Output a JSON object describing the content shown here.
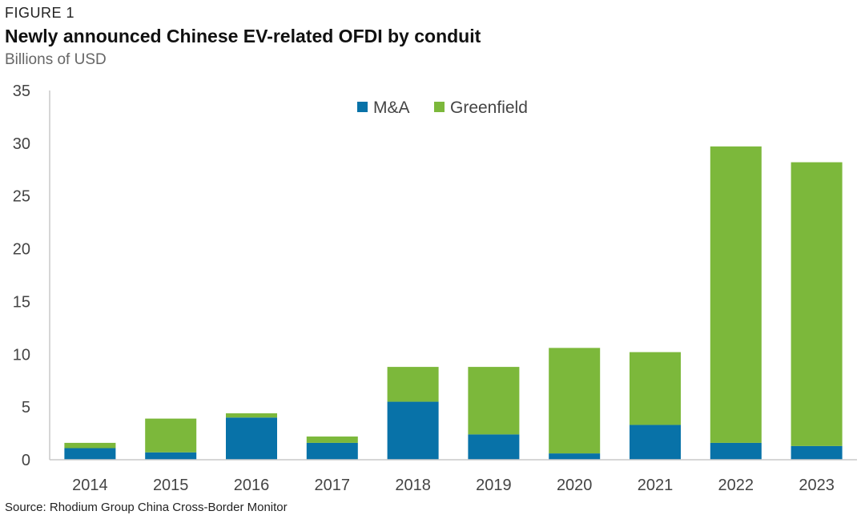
{
  "figure_label": "FIGURE 1",
  "source": "Source: Rhodium Group China Cross-Border Monitor",
  "chart_data": {
    "type": "bar",
    "stacked": true,
    "title": "Newly announced Chinese EV-related OFDI by conduit",
    "subtitle": "Billions of USD",
    "xlabel": "",
    "ylabel": "",
    "categories": [
      "2014",
      "2015",
      "2016",
      "2017",
      "2018",
      "2019",
      "2020",
      "2021",
      "2022",
      "2023"
    ],
    "series": [
      {
        "name": "M&A",
        "color": "#0872a8",
        "values": [
          1.1,
          0.7,
          4.0,
          1.6,
          5.5,
          2.4,
          0.6,
          3.3,
          1.6,
          1.3
        ]
      },
      {
        "name": "Greenfield",
        "color": "#7cb83b",
        "values": [
          0.5,
          3.2,
          0.4,
          0.6,
          3.3,
          6.4,
          10.0,
          6.9,
          28.1,
          26.9
        ]
      }
    ],
    "ylim": [
      0,
      35
    ],
    "yticks": [
      0,
      5,
      10,
      15,
      20,
      25,
      30,
      35
    ],
    "grid": false,
    "legend": "top-center"
  }
}
